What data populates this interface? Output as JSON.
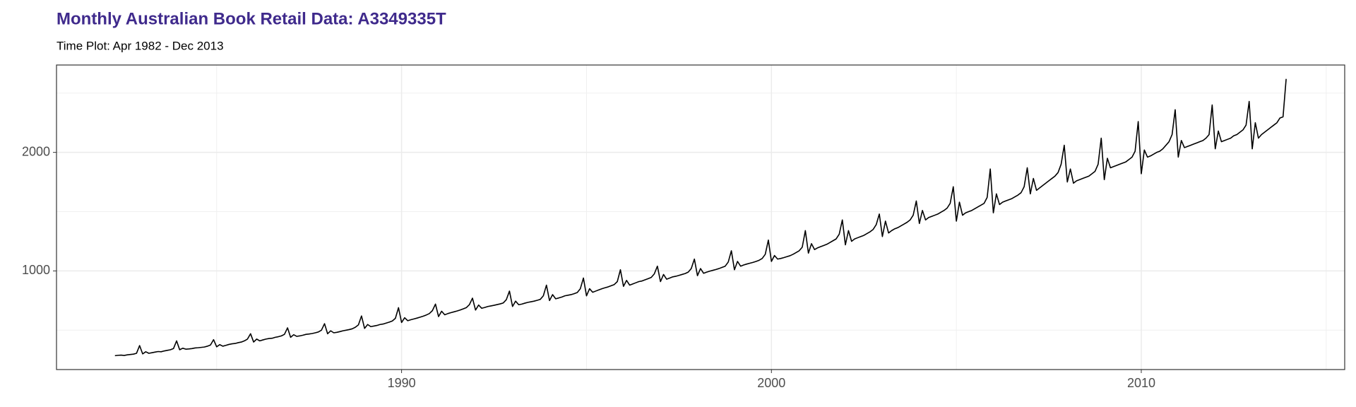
{
  "chart_data": {
    "type": "line",
    "title": "Monthly Australian Book Retail Data: A3349335T",
    "subtitle": "Time Plot: Apr 1982 - Dec 2013",
    "color": "#000000",
    "grid": true,
    "xlim": [
      1980.67,
      2015.5
    ],
    "xticks": [
      1990,
      2000,
      2010
    ],
    "ylim": [
      168,
      2737
    ],
    "yticks": [
      1000,
      2000
    ],
    "x": [
      1982.25,
      1982.333,
      1982.417,
      1982.5,
      1982.583,
      1982.667,
      1982.75,
      1982.833,
      1982.917,
      1983,
      1983.083,
      1983.167,
      1983.25,
      1983.333,
      1983.417,
      1983.5,
      1983.583,
      1983.667,
      1983.75,
      1983.833,
      1983.917,
      1984,
      1984.083,
      1984.167,
      1984.25,
      1984.333,
      1984.417,
      1984.5,
      1984.583,
      1984.667,
      1984.75,
      1984.833,
      1984.917,
      1985,
      1985.083,
      1985.167,
      1985.25,
      1985.333,
      1985.417,
      1985.5,
      1985.583,
      1985.667,
      1985.75,
      1985.833,
      1985.917,
      1986,
      1986.083,
      1986.167,
      1986.25,
      1986.333,
      1986.417,
      1986.5,
      1986.583,
      1986.667,
      1986.75,
      1986.833,
      1986.917,
      1987,
      1987.083,
      1987.167,
      1987.25,
      1987.333,
      1987.417,
      1987.5,
      1987.583,
      1987.667,
      1987.75,
      1987.833,
      1987.917,
      1988,
      1988.083,
      1988.167,
      1988.25,
      1988.333,
      1988.417,
      1988.5,
      1988.583,
      1988.667,
      1988.75,
      1988.833,
      1988.917,
      1989,
      1989.083,
      1989.167,
      1989.25,
      1989.333,
      1989.417,
      1989.5,
      1989.583,
      1989.667,
      1989.75,
      1989.833,
      1989.917,
      1990,
      1990.083,
      1990.167,
      1990.25,
      1990.333,
      1990.417,
      1990.5,
      1990.583,
      1990.667,
      1990.75,
      1990.833,
      1990.917,
      1991,
      1991.083,
      1991.167,
      1991.25,
      1991.333,
      1991.417,
      1991.5,
      1991.583,
      1991.667,
      1991.75,
      1991.833,
      1991.917,
      1992,
      1992.083,
      1992.167,
      1992.25,
      1992.333,
      1992.417,
      1992.5,
      1992.583,
      1992.667,
      1992.75,
      1992.833,
      1992.917,
      1993,
      1993.083,
      1993.167,
      1993.25,
      1993.333,
      1993.417,
      1993.5,
      1993.583,
      1993.667,
      1993.75,
      1993.833,
      1993.917,
      1994,
      1994.083,
      1994.167,
      1994.25,
      1994.333,
      1994.417,
      1994.5,
      1994.583,
      1994.667,
      1994.75,
      1994.833,
      1994.917,
      1995,
      1995.083,
      1995.167,
      1995.25,
      1995.333,
      1995.417,
      1995.5,
      1995.583,
      1995.667,
      1995.75,
      1995.833,
      1995.917,
      1996,
      1996.083,
      1996.167,
      1996.25,
      1996.333,
      1996.417,
      1996.5,
      1996.583,
      1996.667,
      1996.75,
      1996.833,
      1996.917,
      1997,
      1997.083,
      1997.167,
      1997.25,
      1997.333,
      1997.417,
      1997.5,
      1997.583,
      1997.667,
      1997.75,
      1997.833,
      1997.917,
      1998,
      1998.083,
      1998.167,
      1998.25,
      1998.333,
      1998.417,
      1998.5,
      1998.583,
      1998.667,
      1998.75,
      1998.833,
      1998.917,
      1999,
      1999.083,
      1999.167,
      1999.25,
      1999.333,
      1999.417,
      1999.5,
      1999.583,
      1999.667,
      1999.75,
      1999.833,
      1999.917,
      2000,
      2000.083,
      2000.167,
      2000.25,
      2000.333,
      2000.417,
      2000.5,
      2000.583,
      2000.667,
      2000.75,
      2000.833,
      2000.917,
      2001,
      2001.083,
      2001.167,
      2001.25,
      2001.333,
      2001.417,
      2001.5,
      2001.583,
      2001.667,
      2001.75,
      2001.833,
      2001.917,
      2002,
      2002.083,
      2002.167,
      2002.25,
      2002.333,
      2002.417,
      2002.5,
      2002.583,
      2002.667,
      2002.75,
      2002.833,
      2002.917,
      2003,
      2003.083,
      2003.167,
      2003.25,
      2003.333,
      2003.417,
      2003.5,
      2003.583,
      2003.667,
      2003.75,
      2003.833,
      2003.917,
      2004,
      2004.083,
      2004.167,
      2004.25,
      2004.333,
      2004.417,
      2004.5,
      2004.583,
      2004.667,
      2004.75,
      2004.833,
      2004.917,
      2005,
      2005.083,
      2005.167,
      2005.25,
      2005.333,
      2005.417,
      2005.5,
      2005.583,
      2005.667,
      2005.75,
      2005.833,
      2005.917,
      2006,
      2006.083,
      2006.167,
      2006.25,
      2006.333,
      2006.417,
      2006.5,
      2006.583,
      2006.667,
      2006.75,
      2006.833,
      2006.917,
      2007,
      2007.083,
      2007.167,
      2007.25,
      2007.333,
      2007.417,
      2007.5,
      2007.583,
      2007.667,
      2007.75,
      2007.833,
      2007.917,
      2008,
      2008.083,
      2008.167,
      2008.25,
      2008.333,
      2008.417,
      2008.5,
      2008.583,
      2008.667,
      2008.75,
      2008.833,
      2008.917,
      2009,
      2009.083,
      2009.167,
      2009.25,
      2009.333,
      2009.417,
      2009.5,
      2009.583,
      2009.667,
      2009.75,
      2009.833,
      2009.917,
      2010,
      2010.083,
      2010.167,
      2010.25,
      2010.333,
      2010.417,
      2010.5,
      2010.583,
      2010.667,
      2010.75,
      2010.833,
      2010.917,
      2011,
      2011.083,
      2011.167,
      2011.25,
      2011.333,
      2011.417,
      2011.5,
      2011.583,
      2011.667,
      2011.75,
      2011.833,
      2011.917,
      2012,
      2012.083,
      2012.167,
      2012.25,
      2012.333,
      2012.417,
      2012.5,
      2012.583,
      2012.667,
      2012.75,
      2012.833,
      2012.917,
      2013,
      2013.083,
      2013.167,
      2013.25,
      2013.333,
      2013.417,
      2013.5,
      2013.583,
      2013.667,
      2013.75,
      2013.833,
      2013.917
    ],
    "values": [
      285,
      288,
      290,
      287,
      292,
      295,
      298,
      305,
      370,
      300,
      318,
      305,
      310,
      315,
      320,
      318,
      325,
      330,
      335,
      345,
      410,
      335,
      348,
      340,
      342,
      345,
      350,
      352,
      355,
      358,
      365,
      375,
      420,
      360,
      378,
      365,
      372,
      380,
      385,
      388,
      395,
      400,
      410,
      425,
      470,
      400,
      425,
      410,
      418,
      425,
      430,
      432,
      440,
      445,
      452,
      465,
      520,
      440,
      462,
      448,
      452,
      458,
      465,
      468,
      472,
      478,
      485,
      500,
      555,
      470,
      495,
      478,
      482,
      488,
      495,
      500,
      505,
      512,
      525,
      545,
      620,
      515,
      548,
      530,
      535,
      540,
      548,
      552,
      560,
      568,
      578,
      600,
      690,
      565,
      605,
      580,
      588,
      595,
      602,
      610,
      618,
      628,
      640,
      665,
      720,
      615,
      660,
      630,
      640,
      648,
      655,
      662,
      670,
      680,
      690,
      715,
      770,
      670,
      712,
      685,
      692,
      700,
      705,
      710,
      716,
      722,
      730,
      758,
      830,
      700,
      745,
      715,
      720,
      728,
      735,
      740,
      745,
      752,
      760,
      790,
      880,
      750,
      800,
      765,
      772,
      780,
      790,
      795,
      800,
      808,
      818,
      850,
      940,
      790,
      850,
      820,
      830,
      840,
      850,
      858,
      865,
      875,
      885,
      910,
      1010,
      870,
      920,
      880,
      890,
      900,
      910,
      915,
      925,
      935,
      945,
      975,
      1040,
      910,
      970,
      930,
      940,
      950,
      955,
      962,
      970,
      978,
      990,
      1020,
      1100,
      960,
      1020,
      980,
      990,
      998,
      1005,
      1012,
      1020,
      1030,
      1040,
      1075,
      1170,
      1010,
      1080,
      1040,
      1050,
      1058,
      1065,
      1072,
      1080,
      1090,
      1105,
      1140,
      1260,
      1080,
      1130,
      1100,
      1105,
      1112,
      1120,
      1128,
      1140,
      1155,
      1170,
      1200,
      1340,
      1150,
      1230,
      1180,
      1195,
      1205,
      1215,
      1225,
      1240,
      1255,
      1270,
      1310,
      1430,
      1220,
      1340,
      1250,
      1270,
      1280,
      1290,
      1300,
      1315,
      1330,
      1350,
      1390,
      1480,
      1290,
      1420,
      1320,
      1340,
      1355,
      1365,
      1380,
      1395,
      1410,
      1430,
      1470,
      1590,
      1400,
      1510,
      1430,
      1450,
      1460,
      1470,
      1480,
      1495,
      1510,
      1530,
      1570,
      1710,
      1420,
      1580,
      1470,
      1490,
      1500,
      1510,
      1525,
      1540,
      1555,
      1570,
      1620,
      1860,
      1490,
      1650,
      1560,
      1580,
      1590,
      1600,
      1610,
      1625,
      1640,
      1660,
      1710,
      1870,
      1650,
      1780,
      1680,
      1700,
      1720,
      1740,
      1760,
      1780,
      1800,
      1830,
      1900,
      2060,
      1750,
      1860,
      1740,
      1760,
      1770,
      1780,
      1790,
      1800,
      1820,
      1840,
      1900,
      2120,
      1770,
      1950,
      1870,
      1880,
      1890,
      1900,
      1910,
      1920,
      1940,
      1960,
      2010,
      2260,
      1820,
      2020,
      1960,
      1970,
      1985,
      2000,
      2010,
      2030,
      2060,
      2090,
      2150,
      2360,
      1960,
      2100,
      2040,
      2050,
      2060,
      2070,
      2080,
      2090,
      2100,
      2120,
      2150,
      2400,
      2030,
      2180,
      2090,
      2100,
      2110,
      2120,
      2140,
      2150,
      2170,
      2190,
      2230,
      2430,
      2030,
      2250,
      2120,
      2150,
      2170,
      2190,
      2210,
      2230,
      2250,
      2290,
      2300,
      2620
    ]
  }
}
